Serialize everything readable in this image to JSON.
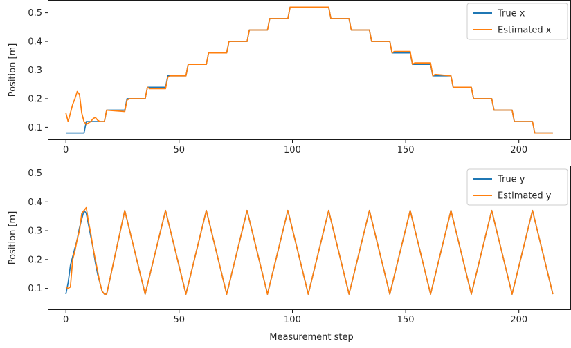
{
  "chart_data": [
    {
      "type": "line",
      "xlabel": "",
      "ylabel": "Position [m]",
      "xlim": [
        -8,
        223
      ],
      "ylim": [
        0.055,
        0.545
      ],
      "xticks": [
        0,
        50,
        100,
        150,
        200
      ],
      "yticks": [
        0.1,
        0.2,
        0.3,
        0.4,
        0.5
      ],
      "ytick_labels": [
        "0.1",
        "0.2",
        "0.3",
        "0.4",
        "0.5"
      ],
      "legend": "top-right",
      "grid": false,
      "series": [
        {
          "name": "True x",
          "color": "#1f77b4",
          "x": [
            0,
            8,
            9,
            17,
            18,
            26,
            27,
            35,
            36,
            44,
            45,
            53,
            54,
            62,
            63,
            71,
            72,
            80,
            81,
            89,
            90,
            98,
            99,
            116,
            117,
            125,
            126,
            134,
            135,
            143,
            144,
            152,
            153,
            161,
            162,
            170,
            171,
            179,
            180,
            188,
            189,
            197,
            198,
            206,
            207,
            215
          ],
          "y": [
            0.08,
            0.08,
            0.12,
            0.12,
            0.16,
            0.16,
            0.2,
            0.2,
            0.24,
            0.24,
            0.28,
            0.28,
            0.32,
            0.32,
            0.36,
            0.36,
            0.4,
            0.4,
            0.44,
            0.44,
            0.48,
            0.48,
            0.52,
            0.52,
            0.48,
            0.48,
            0.44,
            0.44,
            0.4,
            0.4,
            0.36,
            0.36,
            0.32,
            0.32,
            0.28,
            0.28,
            0.24,
            0.24,
            0.2,
            0.2,
            0.16,
            0.16,
            0.12,
            0.12,
            0.08,
            0.08
          ]
        },
        {
          "name": "Estimated x",
          "color": "#ff7f0e",
          "x": [
            0,
            1,
            2,
            3,
            4,
            5,
            6,
            7,
            8,
            9,
            10,
            11,
            12,
            13,
            14,
            15,
            16,
            17,
            18,
            26,
            27,
            28,
            35,
            36,
            37,
            44,
            45,
            46,
            53,
            54,
            55,
            62,
            63,
            64,
            71,
            72,
            73,
            80,
            81,
            82,
            89,
            90,
            91,
            98,
            99,
            100,
            116,
            117,
            118,
            125,
            126,
            127,
            134,
            135,
            136,
            143,
            144,
            145,
            152,
            153,
            154,
            161,
            162,
            163,
            170,
            171,
            172,
            179,
            180,
            181,
            188,
            189,
            190,
            197,
            198,
            199,
            206,
            207,
            208,
            215
          ],
          "y": [
            0.15,
            0.12,
            0.15,
            0.18,
            0.2,
            0.225,
            0.215,
            0.15,
            0.12,
            0.11,
            0.115,
            0.12,
            0.13,
            0.135,
            0.125,
            0.12,
            0.12,
            0.12,
            0.16,
            0.155,
            0.195,
            0.2,
            0.2,
            0.24,
            0.235,
            0.235,
            0.275,
            0.28,
            0.28,
            0.32,
            0.32,
            0.32,
            0.36,
            0.36,
            0.36,
            0.4,
            0.4,
            0.4,
            0.44,
            0.44,
            0.44,
            0.48,
            0.48,
            0.48,
            0.52,
            0.52,
            0.52,
            0.48,
            0.48,
            0.48,
            0.44,
            0.44,
            0.44,
            0.4,
            0.4,
            0.4,
            0.36,
            0.365,
            0.365,
            0.32,
            0.325,
            0.325,
            0.28,
            0.285,
            0.28,
            0.24,
            0.24,
            0.24,
            0.2,
            0.2,
            0.2,
            0.16,
            0.16,
            0.16,
            0.12,
            0.12,
            0.12,
            0.08,
            0.08,
            0.08
          ]
        }
      ]
    },
    {
      "type": "line",
      "xlabel": "Measurement step",
      "ylabel": "Position [m]",
      "xlim": [
        -8,
        223
      ],
      "ylim": [
        0.025,
        0.525
      ],
      "xticks": [
        0,
        50,
        100,
        150,
        200
      ],
      "yticks": [
        0.1,
        0.2,
        0.3,
        0.4,
        0.5
      ],
      "ytick_labels": [
        "0.1",
        "0.2",
        "0.3",
        "0.4",
        "0.5"
      ],
      "legend": "top-right",
      "grid": false,
      "series": [
        {
          "name": "True y",
          "color": "#1f77b4",
          "x": [
            0,
            1,
            2,
            3,
            4,
            5,
            6,
            7,
            8,
            9,
            10,
            11,
            12,
            13,
            14,
            15,
            16,
            17,
            18,
            26,
            35,
            44,
            53,
            62,
            71,
            80,
            89,
            98,
            107,
            116,
            125,
            134,
            143,
            152,
            161,
            170,
            179,
            188,
            197,
            206,
            215
          ],
          "y": [
            0.08,
            0.12,
            0.18,
            0.21,
            0.24,
            0.27,
            0.31,
            0.34,
            0.37,
            0.36,
            0.32,
            0.28,
            0.24,
            0.19,
            0.15,
            0.12,
            0.09,
            0.08,
            0.08,
            0.37,
            0.08,
            0.37,
            0.08,
            0.37,
            0.08,
            0.37,
            0.08,
            0.37,
            0.08,
            0.37,
            0.08,
            0.37,
            0.08,
            0.37,
            0.08,
            0.37,
            0.08,
            0.37,
            0.08,
            0.37,
            0.08
          ]
        },
        {
          "name": "Estimated y",
          "color": "#ff7f0e",
          "x": [
            0,
            1,
            2,
            3,
            4,
            5,
            6,
            7,
            8,
            9,
            10,
            11,
            12,
            13,
            14,
            15,
            16,
            17,
            18,
            26,
            35,
            44,
            53,
            62,
            71,
            80,
            89,
            98,
            107,
            116,
            125,
            134,
            143,
            152,
            161,
            170,
            179,
            188,
            197,
            206,
            215
          ],
          "y": [
            0.105,
            0.1,
            0.105,
            0.2,
            0.23,
            0.27,
            0.3,
            0.36,
            0.37,
            0.38,
            0.33,
            0.29,
            0.24,
            0.2,
            0.16,
            0.12,
            0.09,
            0.08,
            0.08,
            0.37,
            0.08,
            0.37,
            0.08,
            0.37,
            0.08,
            0.37,
            0.08,
            0.37,
            0.08,
            0.37,
            0.08,
            0.37,
            0.08,
            0.37,
            0.08,
            0.37,
            0.08,
            0.37,
            0.08,
            0.37,
            0.08
          ]
        }
      ]
    }
  ]
}
